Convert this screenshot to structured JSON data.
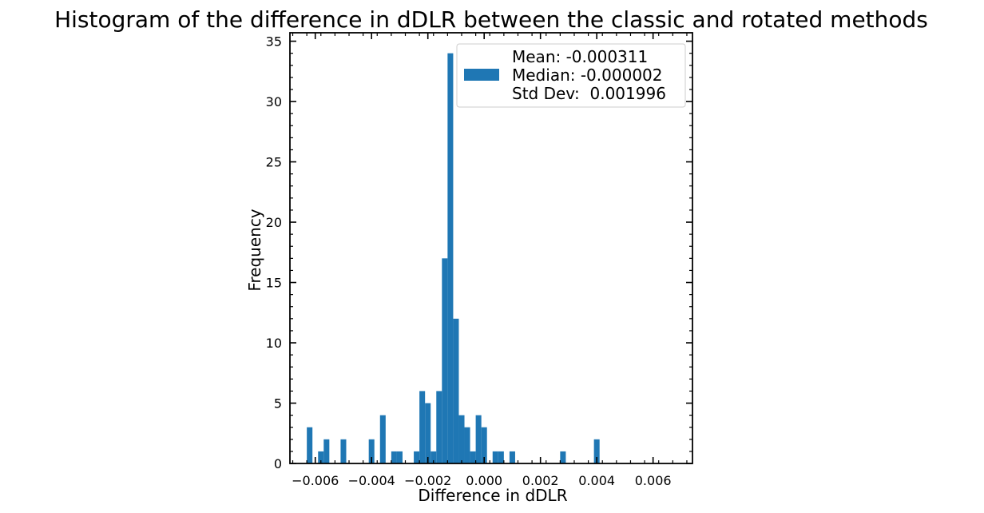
{
  "chart_data": {
    "type": "bar",
    "title": "Histogram of the difference in dDLR between the classic and rotated methods",
    "xlabel": "Difference in dDLR",
    "ylabel": "Frequency",
    "xlim": [
      -0.0069,
      0.0074
    ],
    "ylim": [
      0,
      35.7
    ],
    "xticks": [
      -0.006,
      -0.004,
      -0.002,
      0.0,
      0.002,
      0.004,
      0.006
    ],
    "xtick_labels": [
      "−0.006",
      "−0.004",
      "−0.002",
      "0.000",
      "0.002",
      "0.004",
      "0.006"
    ],
    "yticks": [
      0,
      5,
      10,
      15,
      20,
      25,
      30,
      35
    ],
    "ytick_labels": [
      "0",
      "5",
      "10",
      "15",
      "20",
      "25",
      "30",
      "35"
    ],
    "bin_start": -0.0063,
    "bin_width": 0.0002,
    "values": [
      3,
      0,
      1,
      2,
      0,
      0,
      2,
      0,
      0,
      0,
      0,
      2,
      0,
      4,
      0,
      1,
      1,
      0,
      0,
      1,
      6,
      5,
      1,
      6,
      17,
      34,
      12,
      4,
      3,
      1,
      4,
      3,
      0,
      1,
      1,
      0,
      1,
      0,
      0,
      0,
      0,
      0,
      0,
      0,
      0,
      1,
      0,
      0,
      0,
      0,
      0,
      2
    ],
    "grid": false,
    "color": "#1f77b4",
    "legend": {
      "position": "top-right",
      "entries": [
        "Mean: -0.000311",
        "Median: -0.000002",
        "Std Dev:  0.001996"
      ]
    }
  }
}
